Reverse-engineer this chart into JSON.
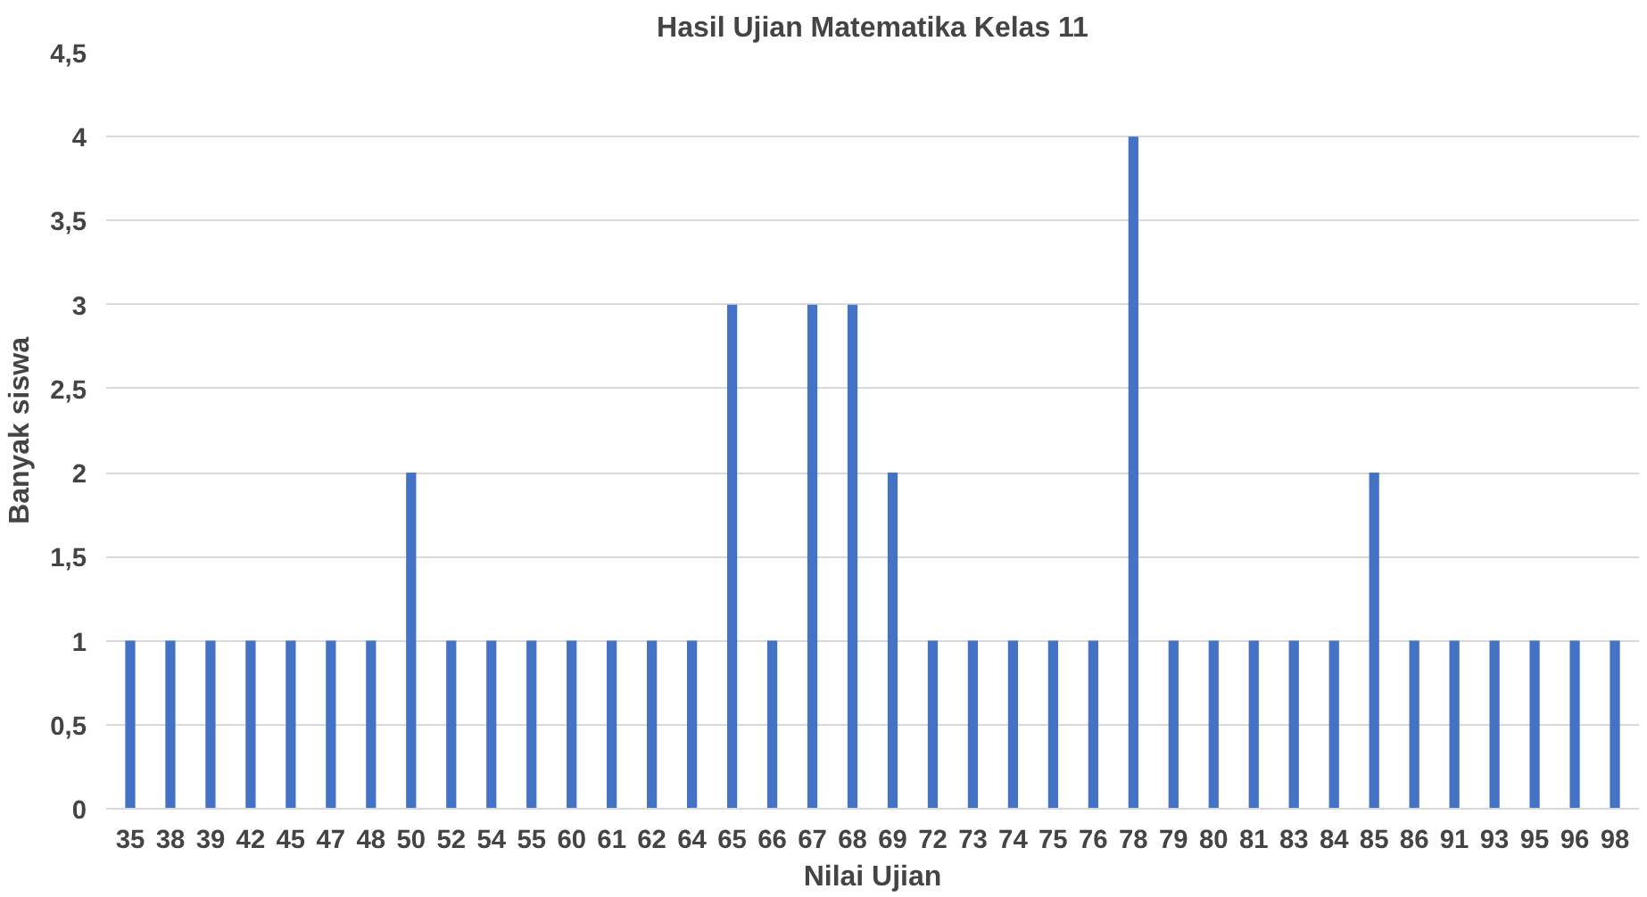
{
  "chart_data": {
    "type": "bar",
    "title": "Hasil Ujian Matematika Kelas 11",
    "xlabel": "Nilai Ujian",
    "ylabel": "Banyak siswa",
    "categories": [
      "35",
      "38",
      "39",
      "42",
      "45",
      "47",
      "48",
      "50",
      "52",
      "54",
      "55",
      "60",
      "61",
      "62",
      "64",
      "65",
      "66",
      "67",
      "68",
      "69",
      "72",
      "73",
      "74",
      "75",
      "76",
      "78",
      "79",
      "80",
      "81",
      "83",
      "84",
      "85",
      "86",
      "91",
      "93",
      "95",
      "96",
      "98"
    ],
    "values": [
      1,
      1,
      1,
      1,
      1,
      1,
      1,
      2,
      1,
      1,
      1,
      1,
      1,
      1,
      1,
      3,
      1,
      3,
      3,
      2,
      1,
      1,
      1,
      1,
      1,
      4,
      1,
      1,
      1,
      1,
      1,
      2,
      1,
      1,
      1,
      1,
      1,
      1
    ],
    "color": "#4472c4",
    "ylim": [
      0,
      4.5
    ],
    "yticks": [
      0,
      {
        "value": 0.5,
        "label": "0,5"
      },
      1,
      {
        "value": 1.5,
        "label": "1,5"
      },
      2,
      {
        "value": 2.5,
        "label": "2,5"
      },
      3,
      {
        "value": 3.5,
        "label": "3,5"
      },
      4,
      {
        "value": 4.5,
        "label": "4,5"
      }
    ],
    "grid": "y"
  }
}
